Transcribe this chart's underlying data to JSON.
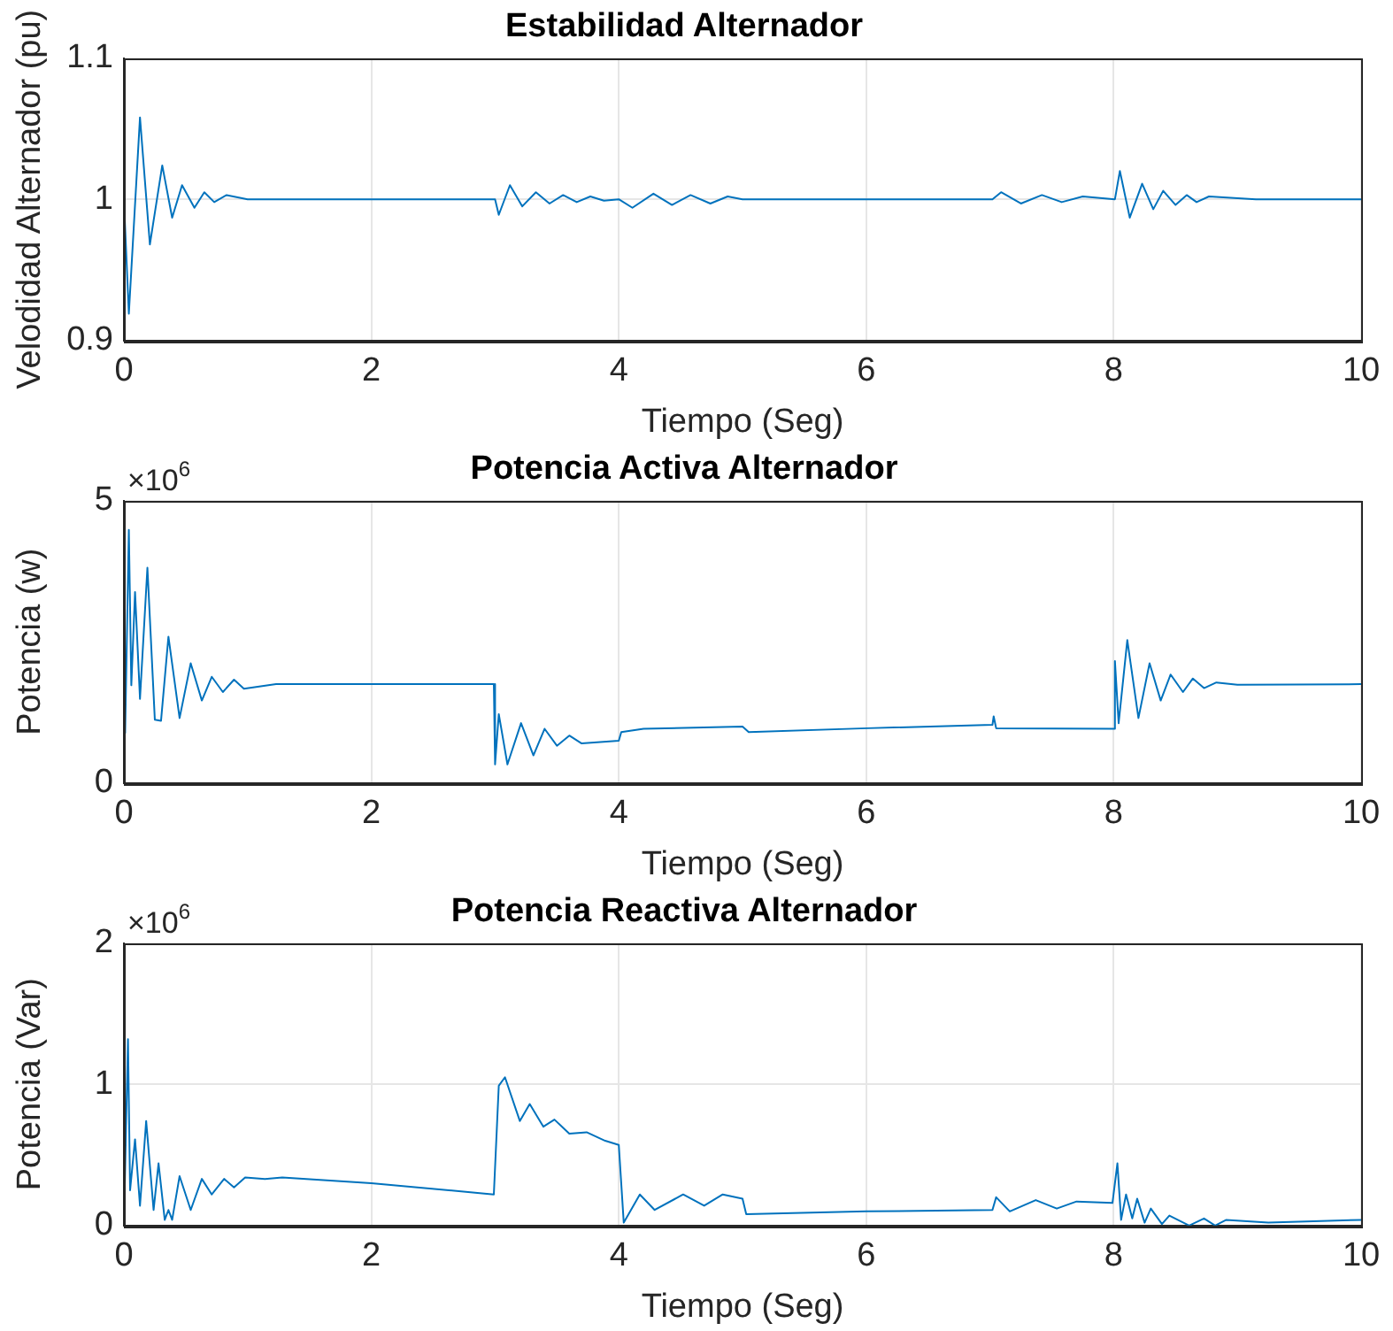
{
  "chart_data": [
    {
      "type": "line",
      "title": "Estabilidad Alternador",
      "xlabel": "Tiempo (Seg)",
      "ylabel": "Velodidad Alternador (pu)",
      "grid": true,
      "legend": false,
      "marker": "none",
      "line_style": "solid",
      "xlim": [
        0,
        10
      ],
      "xticks": [
        0,
        2,
        4,
        6,
        8,
        10
      ],
      "ylim": [
        0.9,
        1.1
      ],
      "yticks": [
        0.9,
        1,
        1.1
      ],
      "series": [
        {
          "color": "#0072bd",
          "x": [
            0,
            0.04,
            0.13,
            0.21,
            0.31,
            0.39,
            0.47,
            0.57,
            0.65,
            0.73,
            0.83,
            1.0,
            3.0,
            3.03,
            3.12,
            3.22,
            3.33,
            3.44,
            3.55,
            3.66,
            3.77,
            3.88,
            4.0,
            4.11,
            4.28,
            4.43,
            4.58,
            4.74,
            4.88,
            5.0,
            7.02,
            7.09,
            7.25,
            7.42,
            7.58,
            7.75,
            8.01,
            8.05,
            8.13,
            8.23,
            8.32,
            8.4,
            8.5,
            8.59,
            8.67,
            8.77,
            9.15,
            10
          ],
          "values": [
            1.0,
            0.919,
            1.058,
            0.968,
            1.024,
            0.987,
            1.01,
            0.994,
            1.005,
            0.998,
            1.003,
            1.0,
            1.0,
            0.989,
            1.01,
            0.995,
            1.005,
            0.997,
            1.003,
            0.998,
            1.002,
            0.999,
            1.0,
            0.994,
            1.004,
            0.996,
            1.003,
            0.997,
            1.002,
            1.0,
            1.0,
            1.005,
            0.997,
            1.003,
            0.998,
            1.002,
            1.0,
            1.02,
            0.987,
            1.011,
            0.993,
            1.006,
            0.996,
            1.003,
            0.998,
            1.002,
            1.0,
            1.0
          ]
        }
      ]
    },
    {
      "type": "line",
      "title": "Potencia Activa Alternador",
      "xlabel": "Tiempo (Seg)",
      "ylabel": "Potencia (w)",
      "annotations": [
        "×10$^{6}$"
      ],
      "grid": true,
      "legend": false,
      "marker": "none",
      "line_style": "solid",
      "xlim": [
        0,
        10
      ],
      "xticks": [
        0,
        2,
        4,
        6,
        8,
        10
      ],
      "ylim": [
        0,
        5
      ],
      "yticks": [
        0,
        5
      ],
      "series": [
        {
          "color": "#0072bd",
          "x": [
            0.01,
            0.04,
            0.06,
            0.09,
            0.13,
            0.19,
            0.25,
            0.3,
            0.36,
            0.45,
            0.54,
            0.63,
            0.71,
            0.8,
            0.89,
            0.97,
            1.23,
            2.99,
            3.0,
            3.03,
            3.1,
            3.21,
            3.31,
            3.4,
            3.5,
            3.6,
            3.7,
            4.0,
            4.02,
            4.2,
            5.0,
            5.05,
            6.01,
            7.02,
            7.03,
            7.05,
            8.0,
            8.01,
            8.04,
            8.11,
            8.2,
            8.29,
            8.38,
            8.46,
            8.56,
            8.64,
            8.73,
            8.83,
            9.0,
            10
          ],
          "values": [
            0.88,
            4.48,
            1.73,
            3.38,
            1.49,
            3.81,
            1.12,
            1.1,
            2.59,
            1.15,
            2.12,
            1.46,
            1.88,
            1.61,
            1.83,
            1.67,
            1.75,
            1.75,
            0.33,
            1.22,
            0.33,
            1.06,
            0.49,
            0.96,
            0.66,
            0.84,
            0.7,
            0.75,
            0.9,
            0.96,
            1.0,
            0.9,
            0.97,
            1.03,
            1.18,
            0.97,
            0.96,
            2.16,
            1.06,
            2.53,
            1.15,
            2.12,
            1.46,
            1.92,
            1.61,
            1.85,
            1.68,
            1.78,
            1.74,
            1.75
          ]
        }
      ]
    },
    {
      "type": "line",
      "title": "Potencia Reactiva Alternador",
      "xlabel": "Tiempo (Seg)",
      "ylabel": "Potencia (Var)",
      "annotations": [
        "×10$^{6}$"
      ],
      "grid": true,
      "legend": false,
      "marker": "none",
      "line_style": "solid",
      "xlim": [
        0,
        10
      ],
      "xticks": [
        0,
        2,
        4,
        6,
        8,
        10
      ],
      "ylim": [
        0,
        2
      ],
      "yticks": [
        0,
        1,
        2
      ],
      "series": [
        {
          "color": "#0072bd",
          "x": [
            0,
            0.033,
            0.05,
            0.09,
            0.13,
            0.18,
            0.24,
            0.28,
            0.33,
            0.36,
            0.39,
            0.45,
            0.54,
            0.63,
            0.71,
            0.81,
            0.89,
            0.98,
            1.14,
            1.28,
            2.0,
            2.99,
            3.03,
            3.08,
            3.2,
            3.28,
            3.39,
            3.48,
            3.6,
            3.74,
            3.89,
            4.0,
            4.04,
            4.17,
            4.29,
            4.52,
            4.69,
            4.84,
            5.0,
            5.03,
            6.0,
            7.02,
            7.05,
            7.16,
            7.37,
            7.54,
            7.7,
            7.99,
            8.03,
            8.06,
            8.1,
            8.15,
            8.19,
            8.25,
            8.3,
            8.39,
            8.45,
            8.61,
            8.73,
            8.82,
            8.91,
            9.25,
            10
          ],
          "values": [
            0,
            1.32,
            0.25,
            0.61,
            0.14,
            0.74,
            0.11,
            0.44,
            0.04,
            0.11,
            0.04,
            0.35,
            0.11,
            0.33,
            0.22,
            0.33,
            0.27,
            0.34,
            0.33,
            0.34,
            0.3,
            0.22,
            0.99,
            1.05,
            0.74,
            0.86,
            0.7,
            0.75,
            0.65,
            0.66,
            0.6,
            0.57,
            0.02,
            0.22,
            0.11,
            0.22,
            0.14,
            0.22,
            0.19,
            0.08,
            0.1,
            0.11,
            0.2,
            0.1,
            0.18,
            0.12,
            0.17,
            0.16,
            0.44,
            0.04,
            0.22,
            0.05,
            0.19,
            0.02,
            0.12,
            0.01,
            0.07,
            0,
            0.05,
            0,
            0.04,
            0.02,
            0.04
          ]
        }
      ]
    }
  ]
}
